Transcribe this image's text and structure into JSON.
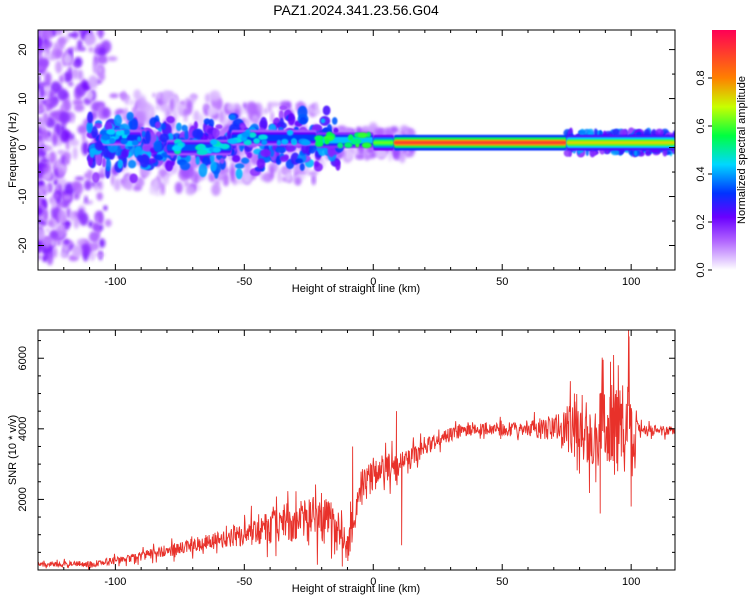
{
  "figure": {
    "title": "PAZ1.2024.341.23.56.G04"
  },
  "colors": {
    "snr_line": "#e8312a",
    "background": "#ffffff",
    "axes": "#000000"
  },
  "chart_data": [
    {
      "type": "heatmap",
      "title": "PAZ1.2024.341.23.56.G04",
      "xlabel": "Height of straight line (km)",
      "ylabel": "Frequency (Hz)",
      "xlim": [
        -130,
        117
      ],
      "ylim": [
        -25,
        24
      ],
      "x_ticks": [
        -100,
        -50,
        0,
        50,
        100
      ],
      "y_ticks": [
        -20,
        -10,
        0,
        10,
        20
      ],
      "grid": false,
      "colorbar": {
        "label": "Normalized spectral amplitude",
        "range": [
          0,
          1
        ],
        "ticks": [
          0.0,
          0.2,
          0.4,
          0.6,
          0.8
        ],
        "colormap": "rainbow",
        "stops": [
          {
            "value": 0.0,
            "color": "#ffffff"
          },
          {
            "value": 0.04,
            "color": "#e4ccff"
          },
          {
            "value": 0.12,
            "color": "#b266ff"
          },
          {
            "value": 0.22,
            "color": "#6a00ff"
          },
          {
            "value": 0.32,
            "color": "#0033ff"
          },
          {
            "value": 0.44,
            "color": "#00d8ff"
          },
          {
            "value": 0.56,
            "color": "#00ff40"
          },
          {
            "value": 0.68,
            "color": "#c8ff00"
          },
          {
            "value": 0.8,
            "color": "#ff8000"
          },
          {
            "value": 1.0,
            "color": "#ff0055"
          }
        ]
      },
      "ridge": {
        "description_frequency_hz": 1,
        "segments": [
          {
            "x_start": -105,
            "x_end": -90,
            "freq": 2,
            "amplitude": 0.35
          },
          {
            "x_start": -80,
            "x_end": -55,
            "freq": 0,
            "amplitude": 0.4
          },
          {
            "x_start": -55,
            "x_end": -22,
            "freq": 2,
            "amplitude": 0.38
          },
          {
            "x_start": -22,
            "x_end": 0,
            "freq": 1.5,
            "amplitude": 0.5
          },
          {
            "x_start": 0,
            "x_end": 8,
            "freq": 1,
            "amplitude": 0.62
          },
          {
            "x_start": 8,
            "x_end": 75,
            "freq": 1,
            "amplitude": 0.9
          },
          {
            "x_start": 75,
            "x_end": 117,
            "freq": 1,
            "amplitude": 0.72
          }
        ]
      }
    },
    {
      "type": "line",
      "xlabel": "Height of straight line (km)",
      "ylabel": "SNR (10 * v/v)",
      "xlim": [
        -130,
        117
      ],
      "ylim": [
        0,
        6800
      ],
      "x_ticks": [
        -100,
        -50,
        0,
        50,
        100
      ],
      "y_ticks": [
        2000,
        4000,
        6000
      ],
      "grid": false,
      "series": [
        {
          "color": "#e8312a",
          "envelope": {
            "x": [
              -130,
              -110,
              -100,
              -90,
              -80,
              -70,
              -60,
              -50,
              -40,
              -30,
              -20,
              -15,
              -10,
              -5,
              0,
              5,
              10,
              15,
              20,
              25,
              30,
              35,
              40,
              45,
              50,
              55,
              60,
              65,
              70,
              75,
              80,
              85,
              90,
              95,
              100,
              105,
              110,
              117
            ],
            "y": [
              150,
              170,
              260,
              380,
              550,
              700,
              850,
              1000,
              1200,
              1400,
              1500,
              1200,
              600,
              2300,
              2700,
              2900,
              3000,
              3200,
              3500,
              3700,
              3850,
              3950,
              4000,
              4000,
              4000,
              4000,
              4000,
              4000,
              4000,
              4000,
              4000,
              4000,
              4000,
              4000,
              4000,
              3950,
              3950,
              3950
            ]
          },
          "noise_amplitude": {
            "x": [
              -130,
              -100,
              -60,
              -40,
              -20,
              -10,
              0,
              20,
              40,
              60,
              68,
              80,
              90,
              100,
              103,
              117
            ],
            "y": [
              80,
              130,
              300,
              600,
              900,
              700,
              600,
              300,
              200,
              250,
              500,
              1200,
              1500,
              1800,
              200,
              150
            ]
          },
          "spikes": [
            {
              "x": -12,
              "y": 100
            },
            {
              "x": -8,
              "y": 3500
            },
            {
              "x": 9,
              "y": 4500
            },
            {
              "x": 11,
              "y": 700
            },
            {
              "x": 78,
              "y": 5000
            },
            {
              "x": 92,
              "y": 5900
            },
            {
              "x": 95,
              "y": 5800
            },
            {
              "x": 99,
              "y": 6800
            },
            {
              "x": 100,
              "y": 1800
            },
            {
              "x": 88,
              "y": 1600
            }
          ]
        }
      ]
    }
  ]
}
